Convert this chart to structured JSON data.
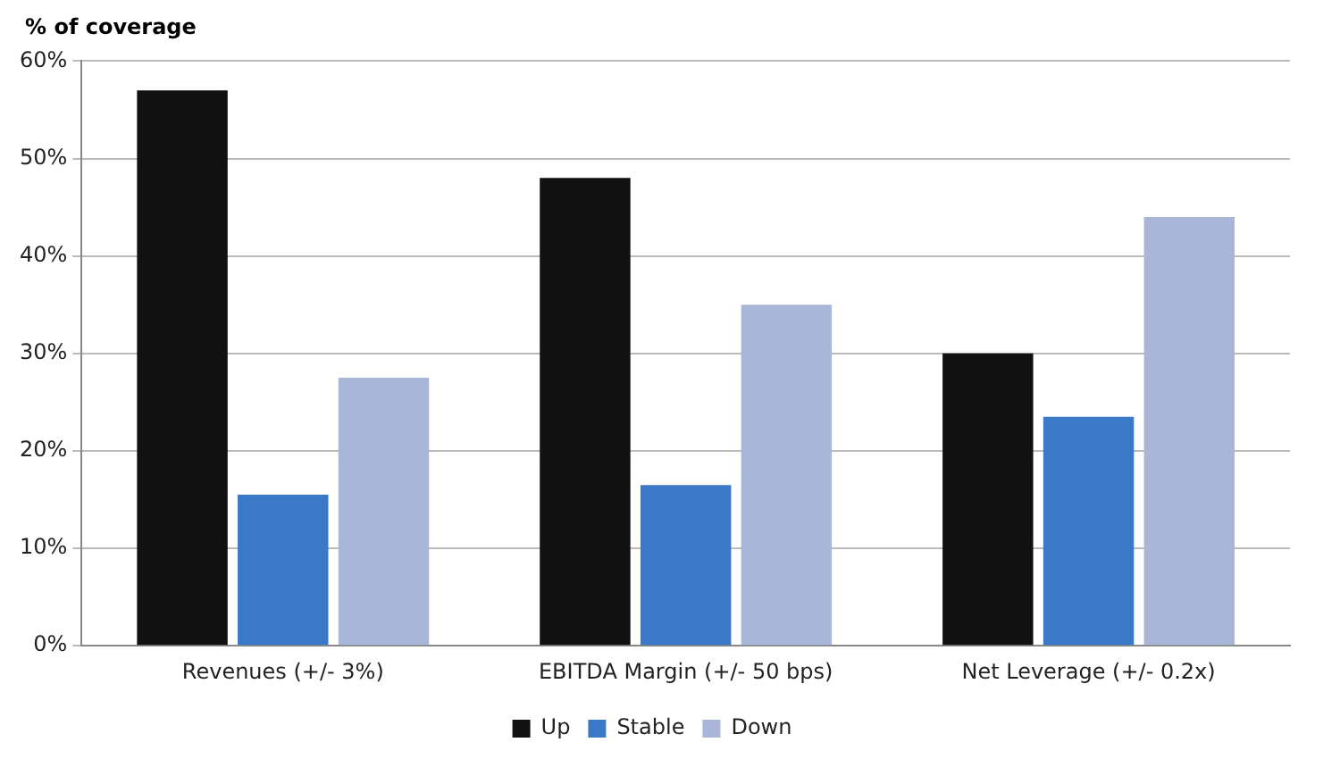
{
  "chart_data": {
    "type": "bar",
    "ylabel": "% of coverage",
    "categories": [
      "Revenues (+/- 3%)",
      "EBITDA Margin (+/- 50 bps)",
      "Net Leverage (+/- 0.2x)"
    ],
    "series": [
      {
        "name": "Up",
        "color": "#111111",
        "values": [
          57,
          48,
          30
        ]
      },
      {
        "name": "Stable",
        "color": "#3a78c8",
        "values": [
          15.5,
          16.5,
          23.5
        ]
      },
      {
        "name": "Down",
        "color": "#aab6d8",
        "values": [
          27.5,
          35,
          44
        ]
      }
    ],
    "ylim": [
      0,
      60
    ],
    "yticks": [
      {
        "value": 0,
        "label": "0%"
      },
      {
        "value": 10,
        "label": "10%"
      },
      {
        "value": 20,
        "label": "20%"
      },
      {
        "value": 30,
        "label": "30%"
      },
      {
        "value": 40,
        "label": "40%"
      },
      {
        "value": 50,
        "label": "50%"
      },
      {
        "value": 60,
        "label": "60%"
      }
    ],
    "grid": "y",
    "legend": "bottom"
  }
}
